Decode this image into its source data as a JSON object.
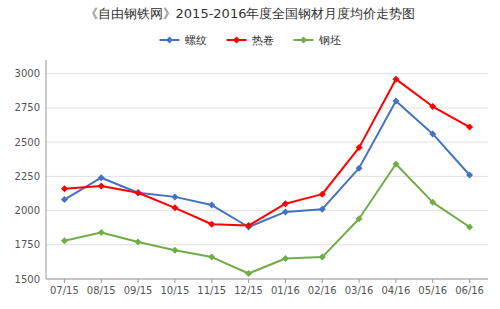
{
  "chart_data": {
    "type": "line",
    "title": "《自由钢铁网》2015-2016年度全国钢材月度均价走势图",
    "categories": [
      "07/15",
      "08/15",
      "09/15",
      "10/15",
      "11/15",
      "12/15",
      "01/16",
      "02/16",
      "03/16",
      "04/16",
      "05/16",
      "06/16"
    ],
    "series": [
      {
        "name": "螺纹",
        "color": "#4472C4",
        "values": [
          2080,
          2240,
          2130,
          2100,
          2040,
          1880,
          1990,
          2010,
          2310,
          2800,
          2560,
          2260
        ]
      },
      {
        "name": "热卷",
        "color": "#FF0000",
        "values": [
          2160,
          2180,
          2130,
          2020,
          1900,
          1890,
          2050,
          2120,
          2460,
          2960,
          2760,
          2610
        ]
      },
      {
        "name": "钢坯",
        "color": "#70AD47",
        "values": [
          1780,
          1840,
          1770,
          1710,
          1660,
          1540,
          1650,
          1660,
          1940,
          2340,
          2060,
          1880
        ]
      }
    ],
    "ylim": [
      1500,
      3100
    ],
    "yticks": [
      1500,
      1750,
      2000,
      2250,
      2500,
      2750,
      3000
    ],
    "grid": true,
    "legend": "top",
    "marker": "diamond"
  }
}
